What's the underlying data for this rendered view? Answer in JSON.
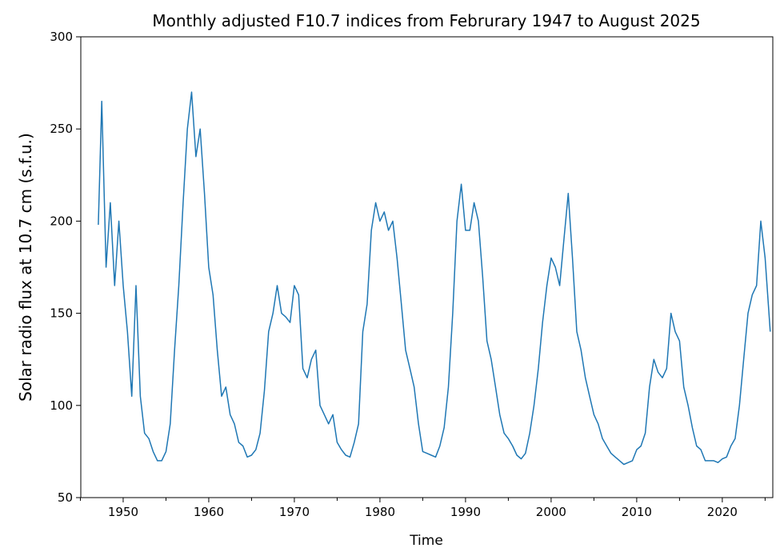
{
  "chart_data": {
    "type": "line",
    "title": "Monthly adjusted F10.7 indices from Februrary 1947 to August 2025",
    "xlabel": "Time",
    "ylabel": "Solar radio flux at 10.7 cm (s.f.u.)",
    "xlim": [
      1945.05,
      2025.9
    ],
    "ylim": [
      50,
      300
    ],
    "xticks": [
      1950,
      1960,
      1970,
      1980,
      1990,
      2000,
      2010,
      2020
    ],
    "xtick_labels": [
      "1950",
      "1960",
      "1970",
      "1980",
      "1990",
      "2000",
      "2010",
      "2020"
    ],
    "x_minor_ticks": [
      1945,
      1955,
      1965,
      1975,
      1985,
      1995,
      2005,
      2015,
      2025
    ],
    "yticks": [
      50,
      100,
      150,
      200,
      250,
      300
    ],
    "ytick_labels": [
      "50",
      "100",
      "150",
      "200",
      "250",
      "300"
    ],
    "grid": false,
    "line_color": "#1f77b4",
    "series": [
      {
        "x": [
          1947.1,
          1947.5,
          1948.0,
          1948.5,
          1949.0,
          1949.5,
          1950.0,
          1950.5,
          1951.0,
          1951.5,
          1952.0,
          1952.5,
          1953.0,
          1953.5,
          1954.0,
          1954.5,
          1955.0,
          1955.5,
          1956.0,
          1956.5,
          1957.0,
          1957.5,
          1958.0,
          1958.5,
          1959.0,
          1959.5,
          1960.0,
          1960.5,
          1961.0,
          1961.5,
          1962.0,
          1962.5,
          1963.0,
          1963.5,
          1964.0,
          1964.5,
          1965.0,
          1965.5,
          1966.0,
          1966.5,
          1967.0,
          1967.5,
          1968.0,
          1968.5,
          1969.0,
          1969.5,
          1970.0,
          1970.5,
          1971.0,
          1971.5,
          1972.0,
          1972.5,
          1973.0,
          1973.5,
          1974.0,
          1974.5,
          1975.0,
          1975.5,
          1976.0,
          1976.5,
          1977.0,
          1977.5,
          1978.0,
          1978.5,
          1979.0,
          1979.5,
          1980.0,
          1980.5,
          1981.0,
          1981.5,
          1982.0,
          1982.5,
          1983.0,
          1983.5,
          1984.0,
          1984.5,
          1985.0,
          1985.5,
          1986.0,
          1986.5,
          1987.0,
          1987.5,
          1988.0,
          1988.5,
          1989.0,
          1989.5,
          1990.0,
          1990.5,
          1991.0,
          1991.5,
          1992.0,
          1992.5,
          1993.0,
          1993.5,
          1994.0,
          1994.5,
          1995.0,
          1995.5,
          1996.0,
          1996.5,
          1997.0,
          1997.5,
          1998.0,
          1998.5,
          1999.0,
          1999.5,
          2000.0,
          2000.5,
          2001.0,
          2001.5,
          2002.0,
          2002.5,
          2003.0,
          2003.5,
          2004.0,
          2004.5,
          2005.0,
          2005.5,
          2006.0,
          2006.5,
          2007.0,
          2007.5,
          2008.0,
          2008.5,
          2009.0,
          2009.5,
          2010.0,
          2010.5,
          2011.0,
          2011.5,
          2012.0,
          2012.5,
          2013.0,
          2013.5,
          2014.0,
          2014.5,
          2015.0,
          2015.5,
          2016.0,
          2016.5,
          2017.0,
          2017.5,
          2018.0,
          2018.5,
          2019.0,
          2019.5,
          2020.0,
          2020.5,
          2021.0,
          2021.5,
          2022.0,
          2022.5,
          2023.0,
          2023.5,
          2024.0,
          2024.5,
          2025.0,
          2025.6
        ],
        "values": [
          198,
          265,
          175,
          210,
          165,
          200,
          165,
          140,
          105,
          165,
          105,
          85,
          82,
          75,
          70,
          70,
          75,
          90,
          130,
          165,
          210,
          250,
          270,
          235,
          250,
          215,
          175,
          160,
          130,
          105,
          110,
          95,
          90,
          80,
          78,
          72,
          73,
          76,
          85,
          108,
          140,
          150,
          165,
          150,
          148,
          145,
          165,
          160,
          120,
          115,
          125,
          130,
          100,
          95,
          90,
          95,
          80,
          76,
          73,
          72,
          80,
          90,
          140,
          155,
          195,
          210,
          200,
          205,
          195,
          200,
          180,
          155,
          130,
          120,
          110,
          90,
          75,
          74,
          73,
          72,
          78,
          88,
          110,
          150,
          200,
          220,
          195,
          195,
          210,
          200,
          170,
          135,
          125,
          110,
          95,
          85,
          82,
          78,
          73,
          71,
          74,
          85,
          100,
          120,
          145,
          165,
          180,
          175,
          165,
          190,
          215,
          180,
          140,
          130,
          115,
          105,
          95,
          90,
          82,
          78,
          74,
          72,
          70,
          68,
          69,
          70,
          76,
          78,
          85,
          110,
          125,
          118,
          115,
          120,
          150,
          140,
          135,
          110,
          100,
          88,
          78,
          76,
          70,
          70,
          70,
          69,
          71,
          72,
          78,
          82,
          100,
          125,
          150,
          160,
          165,
          200,
          180,
          140
        ]
      }
    ]
  }
}
